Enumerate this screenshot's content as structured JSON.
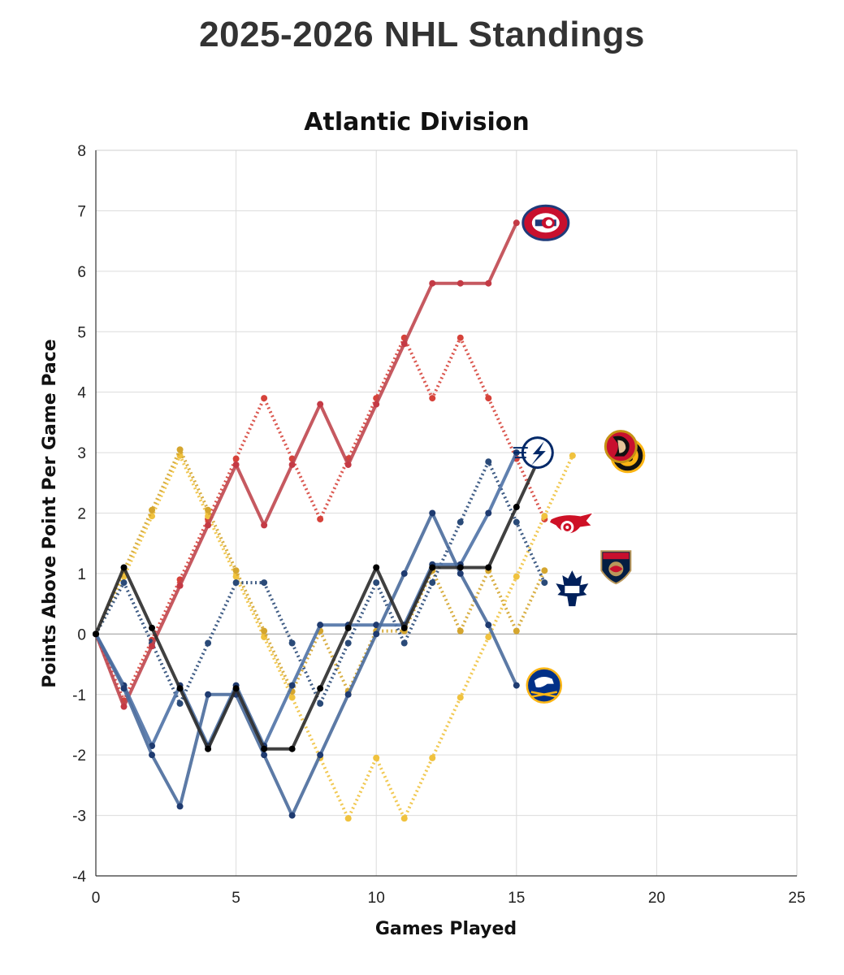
{
  "title": "2025-2026 NHL Standings",
  "chart_data": {
    "type": "line",
    "title": "Atlantic Division",
    "xlabel": "Games Played",
    "ylabel": "Points Above Point Per Game Pace",
    "xlim": [
      0,
      25
    ],
    "ylim": [
      -4,
      8
    ],
    "xticks": [
      0,
      5,
      10,
      15,
      20,
      25
    ],
    "yticks": [
      -4,
      -3,
      -2,
      -1,
      0,
      1,
      2,
      3,
      4,
      5,
      6,
      7,
      8
    ],
    "grid": true,
    "series": [
      {
        "name": "Montreal Canadiens",
        "logo": "canadiens-logo",
        "color": "#c0474f",
        "style": "solid",
        "x": [
          0,
          1,
          2,
          3,
          4,
          5,
          6,
          7,
          8,
          9,
          10,
          11,
          12,
          13,
          14,
          15
        ],
        "y": [
          0,
          -1.2,
          -0.2,
          0.8,
          1.8,
          2.8,
          1.8,
          2.8,
          3.8,
          2.8,
          3.8,
          4.8,
          5.8,
          5.8,
          5.8,
          6.8
        ]
      },
      {
        "name": "Detroit Red Wings",
        "logo": "red-wings-logo",
        "color": "#d6423a",
        "style": "dotted",
        "x": [
          0,
          1,
          2,
          3,
          4,
          5,
          6,
          7,
          8,
          9,
          10,
          11,
          12,
          13,
          14,
          15,
          16
        ],
        "y": [
          0,
          -1.1,
          -0.1,
          0.9,
          1.9,
          2.9,
          3.9,
          2.9,
          1.9,
          2.9,
          3.9,
          4.9,
          3.9,
          4.9,
          3.9,
          2.9,
          1.9
        ]
      },
      {
        "name": "Boston Bruins",
        "logo": "bruins-logo",
        "color": "#f0c23e",
        "style": "dotted",
        "x": [
          0,
          1,
          2,
          3,
          4,
          5,
          6,
          7,
          8,
          9,
          10,
          11,
          12,
          13,
          14,
          15,
          16,
          17
        ],
        "y": [
          0,
          0.95,
          1.95,
          2.95,
          1.95,
          0.95,
          -0.05,
          -1.05,
          -2.05,
          -3.05,
          -2.05,
          -3.05,
          -2.05,
          -1.05,
          -0.05,
          0.95,
          1.95,
          2.95
        ]
      },
      {
        "name": "Florida Panthers",
        "logo": "panthers-logo",
        "color": "#d4a52e",
        "style": "dotted",
        "x": [
          0,
          1,
          2,
          3,
          4,
          5,
          6,
          7,
          8,
          9,
          10,
          11,
          12,
          13,
          14,
          15,
          16
        ],
        "y": [
          0,
          1.05,
          2.05,
          3.05,
          2.05,
          1.05,
          0.05,
          -0.95,
          0.05,
          -0.95,
          0.05,
          0.05,
          1.05,
          0.05,
          1.05,
          0.05,
          1.05
        ]
      },
      {
        "name": "Toronto Maple Leafs",
        "logo": "maple-leafs-logo",
        "color": "#2a4a78",
        "style": "dotted",
        "x": [
          0,
          1,
          2,
          3,
          4,
          5,
          6,
          7,
          8,
          9,
          10,
          11,
          12,
          13,
          14,
          15,
          16
        ],
        "y": [
          0,
          0.85,
          -0.15,
          -1.15,
          -0.15,
          0.85,
          0.85,
          -0.15,
          -1.15,
          -0.15,
          0.85,
          -0.15,
          0.85,
          1.85,
          2.85,
          1.85,
          0.85
        ]
      },
      {
        "name": "Tampa Bay Lightning",
        "logo": "lightning-logo",
        "color": "#4f72a6",
        "style": "solid",
        "x": [
          0,
          1,
          2,
          3,
          4,
          5,
          6,
          7,
          8,
          9,
          10,
          11,
          12,
          13,
          14,
          15
        ],
        "y": [
          0,
          -0.85,
          -1.85,
          -0.85,
          -1.85,
          -0.85,
          -1.85,
          -0.85,
          0.15,
          0.15,
          0.15,
          0.15,
          1.15,
          1.15,
          2.0,
          3.0
        ]
      },
      {
        "name": "Buffalo Sabres",
        "logo": "sabres-logo",
        "color": "#4a6b9c",
        "style": "solid",
        "x": [
          0,
          1,
          2,
          3,
          4,
          5,
          6,
          7,
          8,
          9,
          10,
          11,
          12,
          13,
          14,
          15
        ],
        "y": [
          0,
          -0.9,
          -2.0,
          -2.85,
          -1.0,
          -1.0,
          -2.0,
          -3.0,
          -2.0,
          -1.0,
          0.0,
          1.0,
          2.0,
          1.0,
          0.15,
          -0.85
        ]
      },
      {
        "name": "Ottawa Senators",
        "logo": "senators-logo",
        "color": "#2b2b2b",
        "style": "solid",
        "x": [
          0,
          1,
          2,
          3,
          4,
          5,
          6,
          7,
          8,
          9,
          10,
          11,
          12,
          13,
          14,
          15,
          16
        ],
        "y": [
          0,
          1.1,
          0.1,
          -0.9,
          -1.9,
          -0.9,
          -1.9,
          -1.9,
          -0.9,
          0.1,
          1.1,
          0.1,
          1.1,
          1.1,
          1.1,
          2.1,
          3.1
        ]
      }
    ]
  }
}
